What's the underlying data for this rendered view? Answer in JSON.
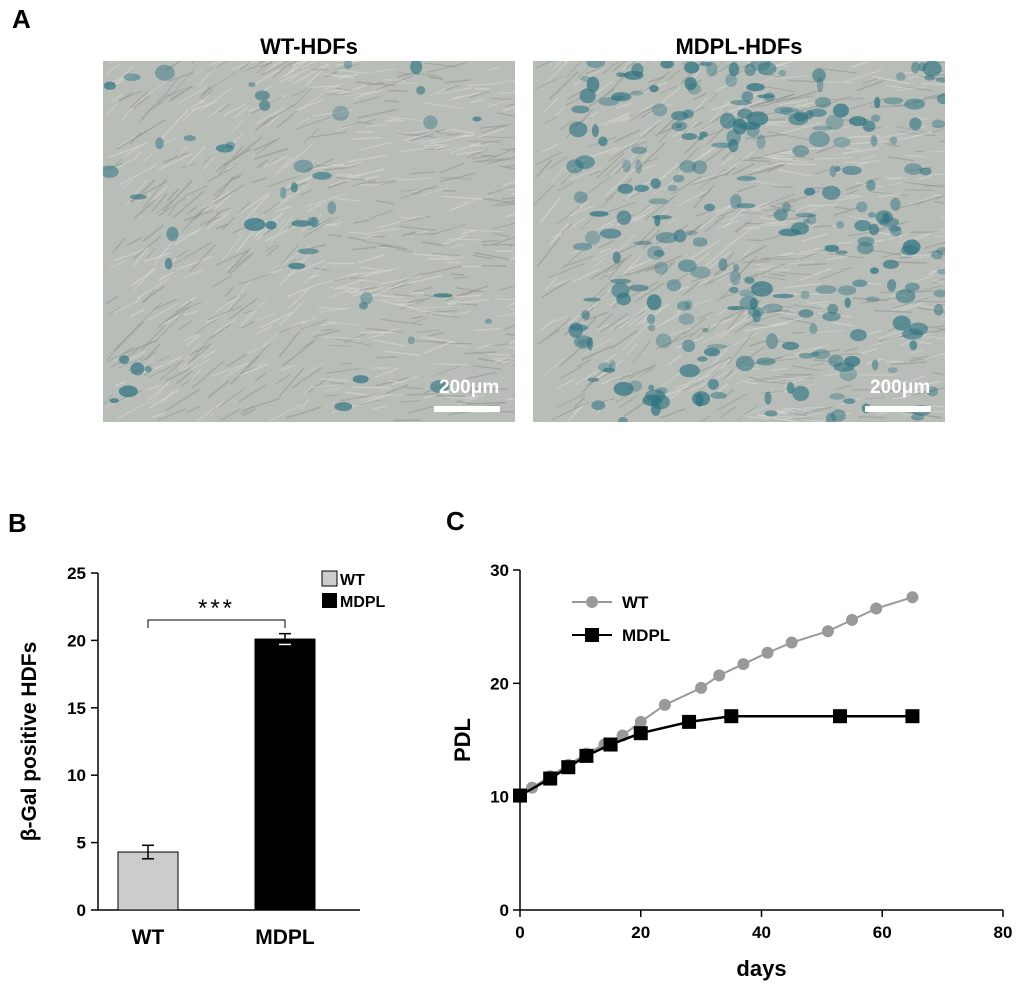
{
  "panels": {
    "a_label": "A",
    "b_label": "B",
    "c_label": "C"
  },
  "micrographs": [
    {
      "title": "WT-HDFs",
      "scale_label": "200μm",
      "staining": "sparse blue β-Gal staining"
    },
    {
      "title": "MDPL-HDFs",
      "scale_label": "200μm",
      "staining": "dense blue β-Gal staining"
    }
  ],
  "colors": {
    "wt_bar": "#cccccc",
    "mdpl_bar": "#000000",
    "wt_line": "#999999",
    "mdpl_line": "#000000",
    "micrograph_bg": "#b9bdb8",
    "stain": "#2f7482"
  },
  "chart_data": [
    {
      "type": "bar",
      "panel": "B",
      "categories": [
        "WT",
        "MDPL"
      ],
      "values": [
        4.3,
        20.1
      ],
      "errors": [
        0.5,
        0.4
      ],
      "ylabel": "β-Gal positive HDFs",
      "xlabel": "",
      "ylim": [
        0,
        25
      ],
      "yticks": [
        "0",
        "5",
        "10",
        "15",
        "20",
        "25"
      ],
      "legend": [
        {
          "name": "WT"
        },
        {
          "name": "MDPL"
        }
      ],
      "legend_position": "top-right",
      "significance": "***",
      "grid": false
    },
    {
      "type": "line",
      "panel": "C",
      "xlabel": "days",
      "ylabel": "PDL",
      "xlim": [
        0,
        80
      ],
      "ylim": [
        0,
        30
      ],
      "xticks": [
        "0",
        "20",
        "40",
        "60",
        "80"
      ],
      "yticks": [
        "0",
        "10",
        "20",
        "30"
      ],
      "legend_position": "top-left",
      "grid": false,
      "series": [
        {
          "name": "WT",
          "marker": "circle",
          "x": [
            0,
            2,
            5,
            8,
            11,
            14,
            17,
            20,
            24,
            30,
            33,
            37,
            41,
            45,
            51,
            55,
            59,
            65
          ],
          "y": [
            10.1,
            10.8,
            11.8,
            12.8,
            13.8,
            14.6,
            15.4,
            16.6,
            18.1,
            19.6,
            20.7,
            21.7,
            22.7,
            23.6,
            24.6,
            25.6,
            26.6,
            27.6
          ]
        },
        {
          "name": "MDPL",
          "marker": "square",
          "x": [
            0,
            5,
            8,
            11,
            15,
            20,
            28,
            35,
            53,
            65
          ],
          "y": [
            10.1,
            11.6,
            12.6,
            13.6,
            14.6,
            15.6,
            16.6,
            17.1,
            17.1,
            17.1
          ]
        }
      ]
    }
  ]
}
